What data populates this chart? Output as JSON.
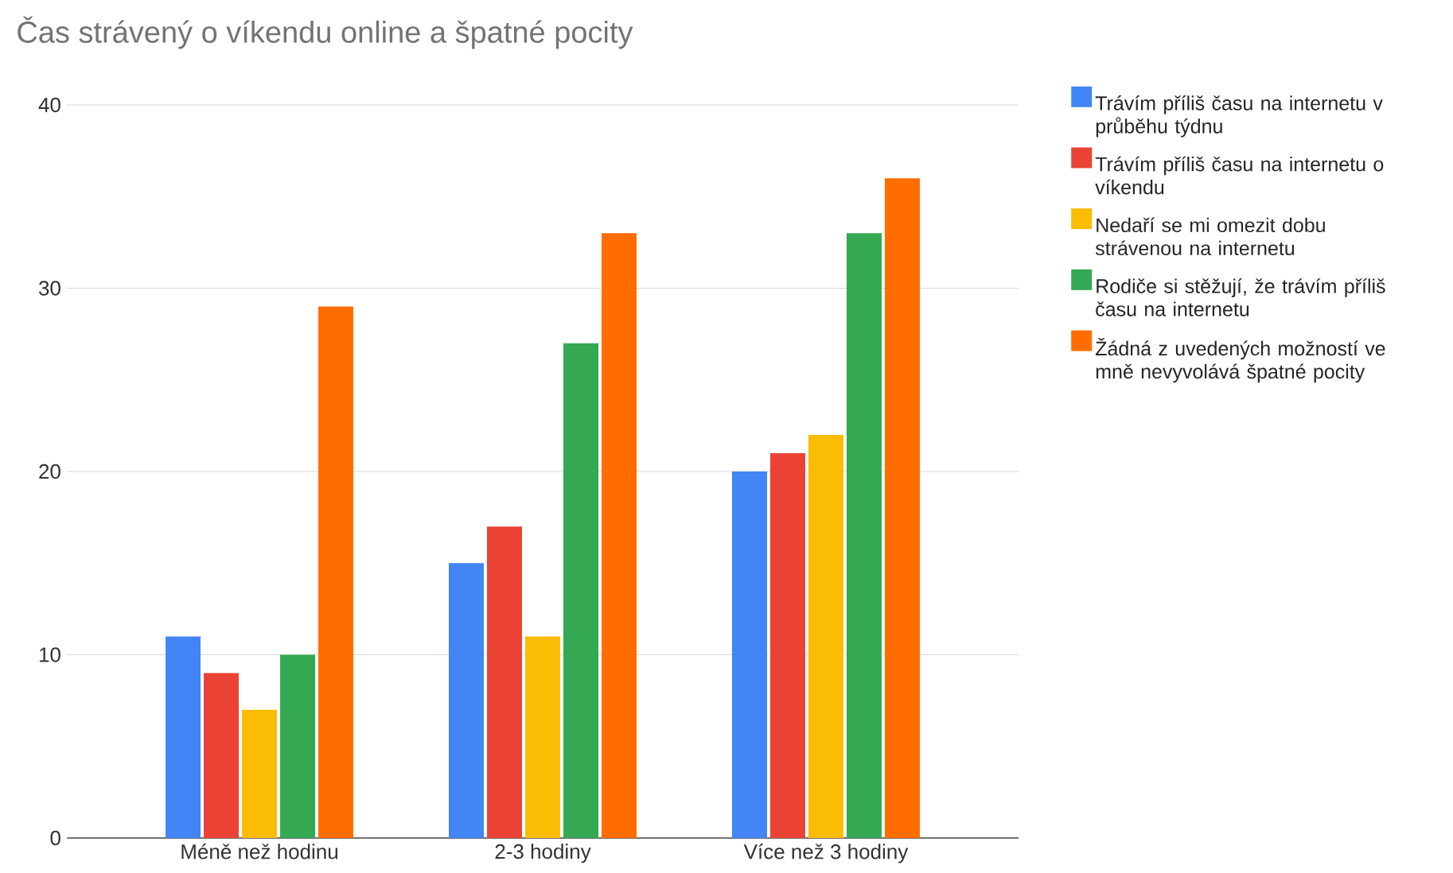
{
  "chart_data": {
    "type": "bar",
    "title": "Čas strávený o víkendu online a špatné pocity",
    "categories": [
      "Méně než hodinu",
      "2-3 hodiny",
      "Více než 3 hodiny"
    ],
    "series": [
      {
        "name": "Trávím příliš času na internetu v průběhu týdnu",
        "color": "#4285f4",
        "values": [
          11,
          15,
          20
        ]
      },
      {
        "name": "Trávím příliš času na internetu o víkendu",
        "color": "#ea4335",
        "values": [
          9,
          17,
          21
        ]
      },
      {
        "name": "Nedaří se mi omezit dobu strávenou na internetu",
        "color": "#fbbc04",
        "values": [
          7,
          11,
          22
        ]
      },
      {
        "name": "Rodiče si stěžují, že trávím příliš času na internetu",
        "color": "#34a853",
        "values": [
          10,
          27,
          33
        ]
      },
      {
        "name": "Žádná z uvedených možností ve mně nevyvolává špatné pocity",
        "color": "#ff6d01",
        "values": [
          29,
          33,
          36
        ]
      }
    ],
    "ylim": [
      0,
      40
    ],
    "yticks": [
      0,
      10,
      20,
      30,
      40
    ],
    "grid": "y",
    "legend": "top right"
  }
}
